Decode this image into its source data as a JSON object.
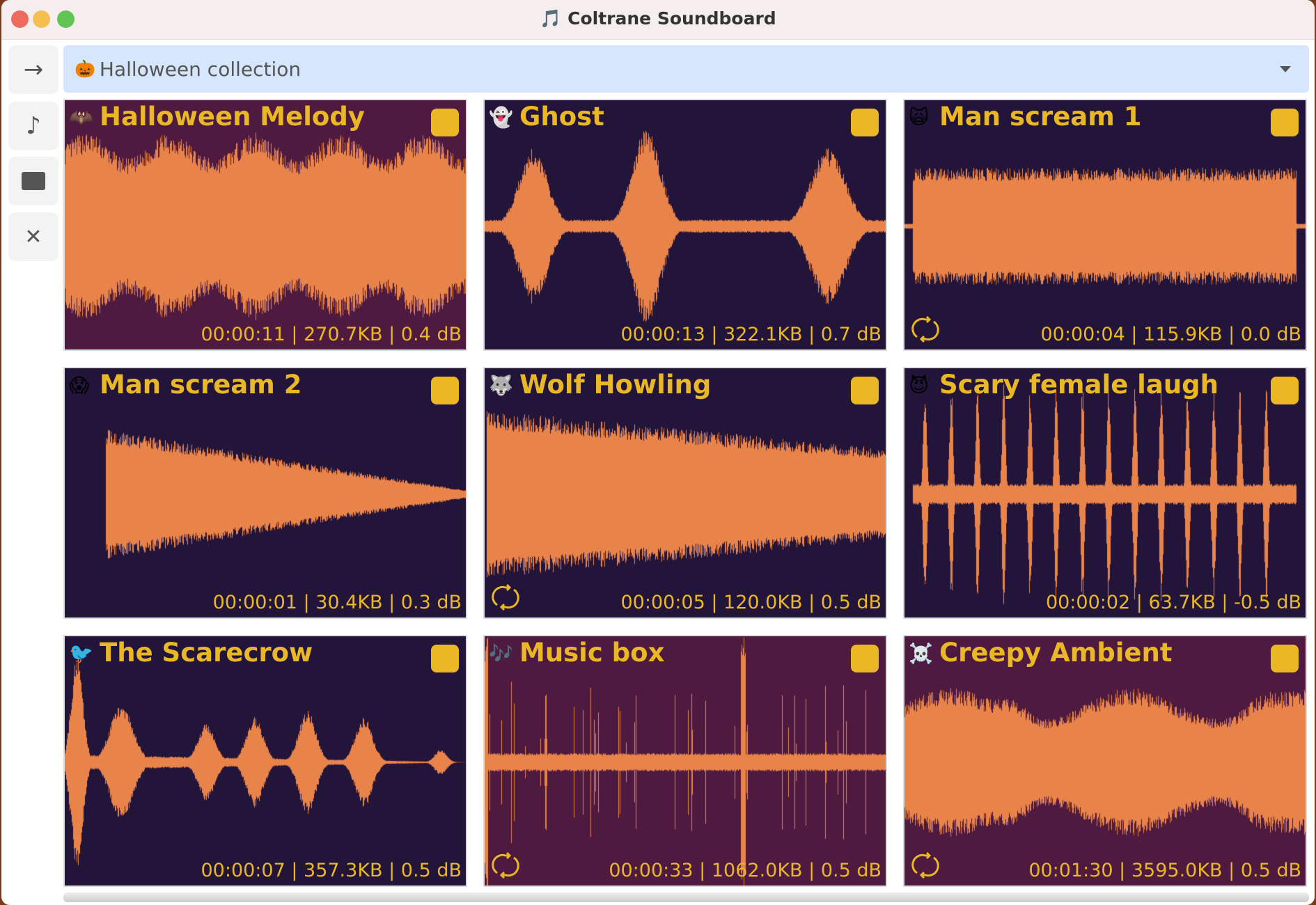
{
  "window": {
    "title": "🎵 Coltrane Soundboard"
  },
  "sidebar": {
    "items": [
      {
        "icon": "arrow-right-icon",
        "glyph": "→"
      },
      {
        "icon": "music-note-icon",
        "glyph": "♪"
      },
      {
        "icon": "folder-icon",
        "glyph": "▬"
      },
      {
        "icon": "close-icon",
        "glyph": "✕"
      }
    ]
  },
  "collection": {
    "emoji": "🎃",
    "label": "Halloween collection"
  },
  "colors": {
    "accent": "#e9b824",
    "wave": "#e8834a",
    "dark": "#23143a",
    "maroon": "#4e1a3f"
  },
  "sounds": [
    {
      "emoji": "🦇",
      "name": "Halloween Melody",
      "meta": "00:00:11 | 270.7KB | 0.4 dB",
      "loop": false,
      "bg": "maroon"
    },
    {
      "emoji": "👻",
      "name": "Ghost",
      "meta": "00:00:13 | 322.1KB | 0.7 dB",
      "loop": false,
      "bg": "dark"
    },
    {
      "emoji": "🙀",
      "name": "Man scream 1",
      "meta": "00:00:04 | 115.9KB | 0.0 dB",
      "loop": true,
      "bg": "dark"
    },
    {
      "emoji": "😱",
      "name": "Man scream 2",
      "meta": "00:00:01 | 30.4KB | 0.3 dB",
      "loop": false,
      "bg": "dark"
    },
    {
      "emoji": "🐺",
      "name": "Wolf Howling",
      "meta": "00:00:05 | 120.0KB | 0.5 dB",
      "loop": true,
      "bg": "dark"
    },
    {
      "emoji": "😈",
      "name": "Scary female laugh",
      "meta": "00:00:02 | 63.7KB | -0.5 dB",
      "loop": false,
      "bg": "dark"
    },
    {
      "emoji": "🐦",
      "name": "The Scarecrow",
      "meta": "00:00:07 | 357.3KB | 0.5 dB",
      "loop": false,
      "bg": "dark"
    },
    {
      "emoji": "🎶",
      "name": "Music box",
      "meta": "00:00:33 | 1062.0KB | 0.5 dB",
      "loop": true,
      "bg": "maroon"
    },
    {
      "emoji": "☠️",
      "name": "Creepy Ambient",
      "meta": "00:01:30 | 3595.0KB | 0.5 dB",
      "loop": true,
      "bg": "maroon"
    }
  ]
}
